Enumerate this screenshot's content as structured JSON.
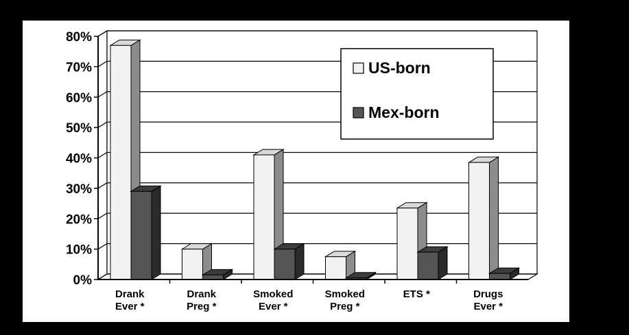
{
  "chart_data": {
    "type": "bar",
    "style": "3d-clustered-column",
    "categories": [
      [
        "Drank",
        "Ever *"
      ],
      [
        "Drank",
        "Preg *"
      ],
      [
        "Smoked",
        "Ever *"
      ],
      [
        "Smoked",
        "Preg *"
      ],
      [
        "ETS *"
      ],
      [
        "Drugs",
        "Ever *"
      ]
    ],
    "series": [
      {
        "name": "US-born",
        "values": [
          77,
          10,
          41,
          7.5,
          23.5,
          38.5
        ],
        "color": "#f2f2f2",
        "side_color": "#8c8c8c",
        "top_color": "#d9d9d9"
      },
      {
        "name": "Mex-born",
        "values": [
          29,
          1.5,
          10,
          0.5,
          9,
          2
        ],
        "color": "#555555",
        "side_color": "#2a2a2a",
        "top_color": "#3c3c3c"
      }
    ],
    "yticks": [
      "0%",
      "10%",
      "20%",
      "30%",
      "40%",
      "50%",
      "60%",
      "70%",
      "80%"
    ],
    "ylim": [
      0,
      80
    ],
    "grid": true,
    "legend_position": "top-right",
    "title": "",
    "xlabel": "",
    "ylabel": ""
  }
}
